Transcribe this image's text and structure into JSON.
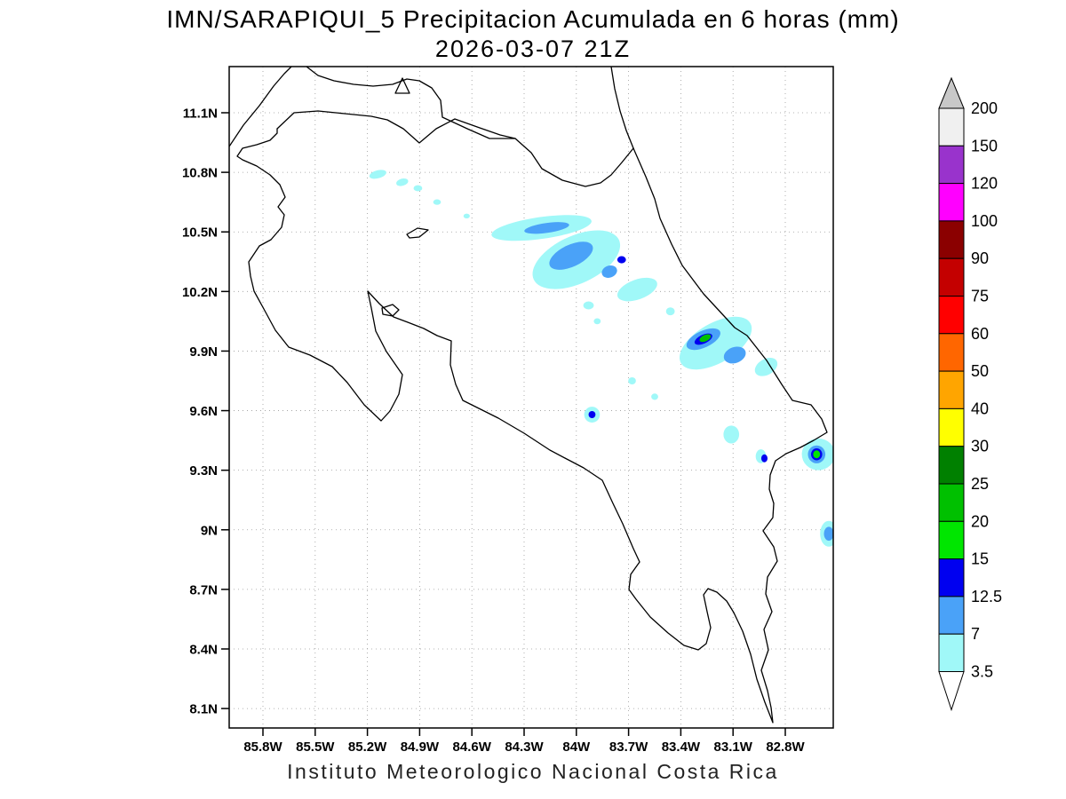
{
  "header": {
    "title_line1": "IMN/SARAPIQUI_5 Precipitacion Acumulada en 6 horas (mm)",
    "title_line2": "2026-03-07 21Z"
  },
  "footer": {
    "caption": "Instituto Meteorologico Nacional Costa Rica"
  },
  "chart_data": {
    "type": "heatmap",
    "subtype": "filled-contour-precipitation-map",
    "title": "IMN/SARAPIQUI_5 Precipitacion Acumulada en 6 horas (mm)",
    "valid_time": "2026-03-07 21Z",
    "units": "mm",
    "region": "Costa Rica",
    "grid": true,
    "legend_position": "right",
    "lat_ticks": [
      {
        "label": "11.1N",
        "value": 11.1
      },
      {
        "label": "10.8N",
        "value": 10.8
      },
      {
        "label": "10.5N",
        "value": 10.5
      },
      {
        "label": "10.2N",
        "value": 10.2
      },
      {
        "label": "9.9N",
        "value": 9.9
      },
      {
        "label": "9.6N",
        "value": 9.6
      },
      {
        "label": "9.3N",
        "value": 9.3
      },
      {
        "label": "9N",
        "value": 9.0
      },
      {
        "label": "8.7N",
        "value": 8.7
      },
      {
        "label": "8.4N",
        "value": 8.4
      },
      {
        "label": "8.1N",
        "value": 8.1
      }
    ],
    "lon_ticks": [
      {
        "label": "85.8W",
        "value": 85.8
      },
      {
        "label": "85.5W",
        "value": 85.5
      },
      {
        "label": "85.2W",
        "value": 85.2
      },
      {
        "label": "84.9W",
        "value": 84.9
      },
      {
        "label": "84.6W",
        "value": 84.6
      },
      {
        "label": "84.3W",
        "value": 84.3
      },
      {
        "label": "84W",
        "value": 84.0
      },
      {
        "label": "83.7W",
        "value": 83.7
      },
      {
        "label": "83.4W",
        "value": 83.4
      },
      {
        "label": "83.1W",
        "value": 83.1
      },
      {
        "label": "82.8W",
        "value": 82.8
      }
    ],
    "lon_range_w": [
      86.0,
      82.45
    ],
    "lat_range_n": [
      8.0,
      11.33
    ],
    "colorbar": {
      "tick_labels": [
        "200",
        "150",
        "120",
        "100",
        "90",
        "75",
        "60",
        "50",
        "40",
        "30",
        "25",
        "20",
        "15",
        "12.5",
        "7",
        "3.5"
      ],
      "boundaries_desc": [
        200,
        150,
        120,
        100,
        90,
        75,
        60,
        50,
        40,
        30,
        25,
        20,
        15,
        12.5,
        7,
        3.5
      ],
      "segment_colors_top_down": [
        "#f0f0f0",
        "#9933cc",
        "#ff00ff",
        "#8b0000",
        "#c40000",
        "#ff0000",
        "#ff6600",
        "#ffa500",
        "#ffff00",
        "#008000",
        "#00c000",
        "#00e600",
        "#0000f0",
        "#4aa2f8",
        "#a0f8f8"
      ],
      "over_arrow_color": "#c8c8c8",
      "under_arrow_color": "#ffffff"
    },
    "precip_cells": [
      {
        "lon": 84.2,
        "lat": 10.52,
        "rx": 0.29,
        "ry": 0.055,
        "rot": -8,
        "mm": 5
      },
      {
        "lon": 84.0,
        "lat": 10.36,
        "rx": 0.27,
        "ry": 0.12,
        "rot": -25,
        "mm": 5
      },
      {
        "lon": 83.65,
        "lat": 10.21,
        "rx": 0.12,
        "ry": 0.05,
        "rot": -20,
        "mm": 5
      },
      {
        "lon": 85.14,
        "lat": 10.79,
        "rx": 0.05,
        "ry": 0.02,
        "rot": -15,
        "mm": 5
      },
      {
        "lon": 85.0,
        "lat": 10.75,
        "rx": 0.035,
        "ry": 0.018,
        "rot": -15,
        "mm": 5
      },
      {
        "lon": 84.91,
        "lat": 10.72,
        "rx": 0.025,
        "ry": 0.015,
        "rot": 0,
        "mm": 5
      },
      {
        "lon": 84.8,
        "lat": 10.65,
        "rx": 0.022,
        "ry": 0.014,
        "rot": 0,
        "mm": 5
      },
      {
        "lon": 84.63,
        "lat": 10.58,
        "rx": 0.018,
        "ry": 0.012,
        "rot": 0,
        "mm": 5
      },
      {
        "lon": 83.93,
        "lat": 10.13,
        "rx": 0.03,
        "ry": 0.02,
        "rot": 0,
        "mm": 5
      },
      {
        "lon": 83.88,
        "lat": 10.05,
        "rx": 0.02,
        "ry": 0.015,
        "rot": 0,
        "mm": 5
      },
      {
        "lon": 83.46,
        "lat": 10.1,
        "rx": 0.025,
        "ry": 0.02,
        "rot": 0,
        "mm": 5
      },
      {
        "lon": 83.2,
        "lat": 9.94,
        "rx": 0.23,
        "ry": 0.1,
        "rot": -30,
        "mm": 5
      },
      {
        "lon": 82.91,
        "lat": 9.82,
        "rx": 0.07,
        "ry": 0.04,
        "rot": -30,
        "mm": 5
      },
      {
        "lon": 83.68,
        "lat": 9.75,
        "rx": 0.022,
        "ry": 0.018,
        "rot": 0,
        "mm": 5
      },
      {
        "lon": 83.55,
        "lat": 9.67,
        "rx": 0.02,
        "ry": 0.016,
        "rot": 0,
        "mm": 5
      },
      {
        "lon": 83.91,
        "lat": 9.58,
        "rx": 0.045,
        "ry": 0.04,
        "rot": 0,
        "mm": 5
      },
      {
        "lon": 83.11,
        "lat": 9.48,
        "rx": 0.045,
        "ry": 0.045,
        "rot": 0,
        "mm": 5
      },
      {
        "lon": 82.94,
        "lat": 9.37,
        "rx": 0.03,
        "ry": 0.035,
        "rot": 0,
        "mm": 5
      },
      {
        "lon": 82.61,
        "lat": 9.38,
        "rx": 0.095,
        "ry": 0.08,
        "rot": 0,
        "mm": 5
      },
      {
        "lon": 82.55,
        "lat": 8.98,
        "rx": 0.05,
        "ry": 0.065,
        "rot": 0,
        "mm": 5
      },
      {
        "lon": 84.17,
        "lat": 10.52,
        "rx": 0.13,
        "ry": 0.025,
        "rot": -8,
        "mm": 10
      },
      {
        "lon": 84.03,
        "lat": 10.38,
        "rx": 0.135,
        "ry": 0.055,
        "rot": -25,
        "mm": 10
      },
      {
        "lon": 83.81,
        "lat": 10.3,
        "rx": 0.045,
        "ry": 0.03,
        "rot": -20,
        "mm": 10
      },
      {
        "lon": 83.27,
        "lat": 9.96,
        "rx": 0.105,
        "ry": 0.042,
        "rot": -25,
        "mm": 10
      },
      {
        "lon": 83.09,
        "lat": 9.88,
        "rx": 0.065,
        "ry": 0.04,
        "rot": -20,
        "mm": 10
      },
      {
        "lon": 82.62,
        "lat": 9.38,
        "rx": 0.05,
        "ry": 0.045,
        "rot": 0,
        "mm": 10
      },
      {
        "lon": 82.55,
        "lat": 8.98,
        "rx": 0.028,
        "ry": 0.035,
        "rot": 0,
        "mm": 10
      },
      {
        "lon": 83.74,
        "lat": 10.36,
        "rx": 0.025,
        "ry": 0.018,
        "rot": 0,
        "mm": 13
      },
      {
        "lon": 83.91,
        "lat": 9.58,
        "rx": 0.02,
        "ry": 0.018,
        "rot": 0,
        "mm": 13
      },
      {
        "lon": 82.92,
        "lat": 9.36,
        "rx": 0.018,
        "ry": 0.02,
        "rot": 0,
        "mm": 13
      },
      {
        "lon": 83.27,
        "lat": 9.96,
        "rx": 0.055,
        "ry": 0.022,
        "rot": -25,
        "mm": 13
      },
      {
        "lon": 82.62,
        "lat": 9.38,
        "rx": 0.032,
        "ry": 0.03,
        "rot": 0,
        "mm": 13
      },
      {
        "lon": 83.26,
        "lat": 9.965,
        "rx": 0.035,
        "ry": 0.016,
        "rot": -25,
        "mm": 22
      },
      {
        "lon": 82.62,
        "lat": 9.38,
        "rx": 0.02,
        "ry": 0.02,
        "rot": 0,
        "mm": 17
      }
    ]
  }
}
